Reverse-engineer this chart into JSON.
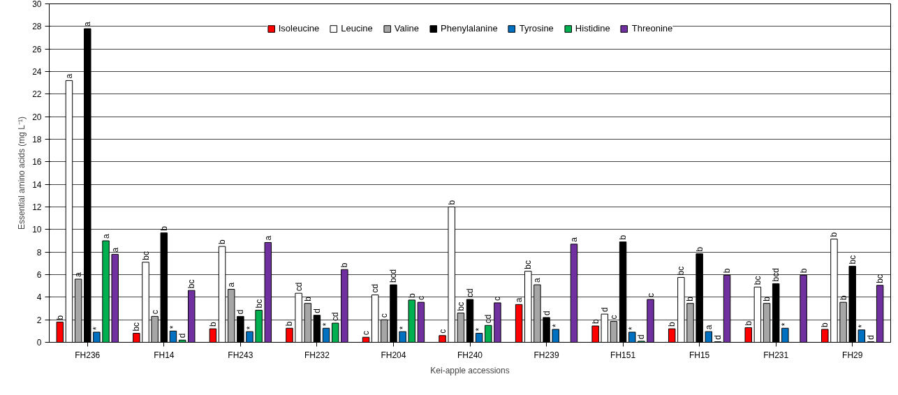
{
  "chart_data": {
    "type": "bar",
    "xlabel": "Kei-apple accessions",
    "ylabel": "Essential amino acids (mg L⁻¹)",
    "categories": [
      "FH236",
      "FH14",
      "FH243",
      "FH232",
      "FH204",
      "FH240",
      "FH239",
      "FH151",
      "FH15",
      "FH231",
      "FH29"
    ],
    "series": [
      {
        "name": "Isoleucine",
        "color": "#ff0000",
        "values": [
          1.8,
          0.8,
          1.2,
          1.25,
          0.45,
          0.6,
          3.35,
          1.45,
          1.2,
          1.3,
          1.15
        ],
        "value_labels": [
          "b",
          "bc",
          "b",
          "b",
          "c",
          "c",
          "a",
          "b",
          "b",
          "b",
          "b"
        ]
      },
      {
        "name": "Leucine",
        "color": "#ffffff",
        "values": [
          23.2,
          7.1,
          8.5,
          4.35,
          4.2,
          12.0,
          6.3,
          2.5,
          5.75,
          4.9,
          9.15
        ],
        "value_labels": [
          "a",
          "bc",
          "b",
          "cd",
          "cd",
          "b",
          "bc",
          "d",
          "bc",
          "bc",
          "b"
        ]
      },
      {
        "name": "Valine",
        "color": "#a6a6a6",
        "values": [
          5.6,
          2.3,
          4.7,
          3.45,
          2.0,
          2.6,
          5.1,
          1.85,
          3.45,
          3.45,
          3.55
        ],
        "value_labels": [
          "a",
          "c",
          "a",
          "b",
          "c",
          "bc",
          "a",
          "c",
          "b",
          "b",
          "b"
        ]
      },
      {
        "name": "Phenylalanine",
        "color": "#000000",
        "values": [
          27.8,
          9.7,
          2.3,
          2.4,
          5.1,
          3.8,
          2.2,
          8.9,
          7.85,
          5.2,
          6.75
        ],
        "value_labels": [
          "a",
          "b",
          "d",
          "d",
          "bcd",
          "cd",
          "d",
          "b",
          "b",
          "bcd",
          "bc"
        ]
      },
      {
        "name": "Tyrosine",
        "color": "#0070c0",
        "values": [
          0.9,
          1.0,
          0.95,
          1.25,
          0.95,
          0.8,
          1.15,
          0.9,
          0.95,
          1.25,
          1.1
        ],
        "value_labels": [
          "*",
          "*",
          "*",
          "*",
          "*",
          "*",
          "*",
          "*",
          "a",
          "*",
          "*"
        ]
      },
      {
        "name": "Histidine",
        "color": "#00b050",
        "values": [
          9.0,
          0.2,
          2.85,
          1.7,
          3.75,
          1.5,
          null,
          0.1,
          0.05,
          null,
          0.05
        ],
        "value_labels": [
          "a",
          "d",
          "bc",
          "cd",
          "b",
          "cd",
          null,
          "d",
          "d",
          null,
          "d"
        ]
      },
      {
        "name": "Threonine",
        "color": "#7030a0",
        "values": [
          7.8,
          4.6,
          8.85,
          6.45,
          3.55,
          3.5,
          8.7,
          3.8,
          5.95,
          5.95,
          5.05
        ],
        "value_labels": [
          "a",
          "bc",
          "a",
          "b",
          "c",
          "c",
          "a",
          "c",
          "b",
          "b",
          "bc"
        ]
      }
    ],
    "ylim": [
      0,
      30
    ],
    "yticks": [
      0,
      2,
      4,
      6,
      8,
      10,
      12,
      14,
      16,
      18,
      20,
      22,
      24,
      26,
      28,
      30
    ],
    "grid": "y",
    "legend": "top"
  }
}
